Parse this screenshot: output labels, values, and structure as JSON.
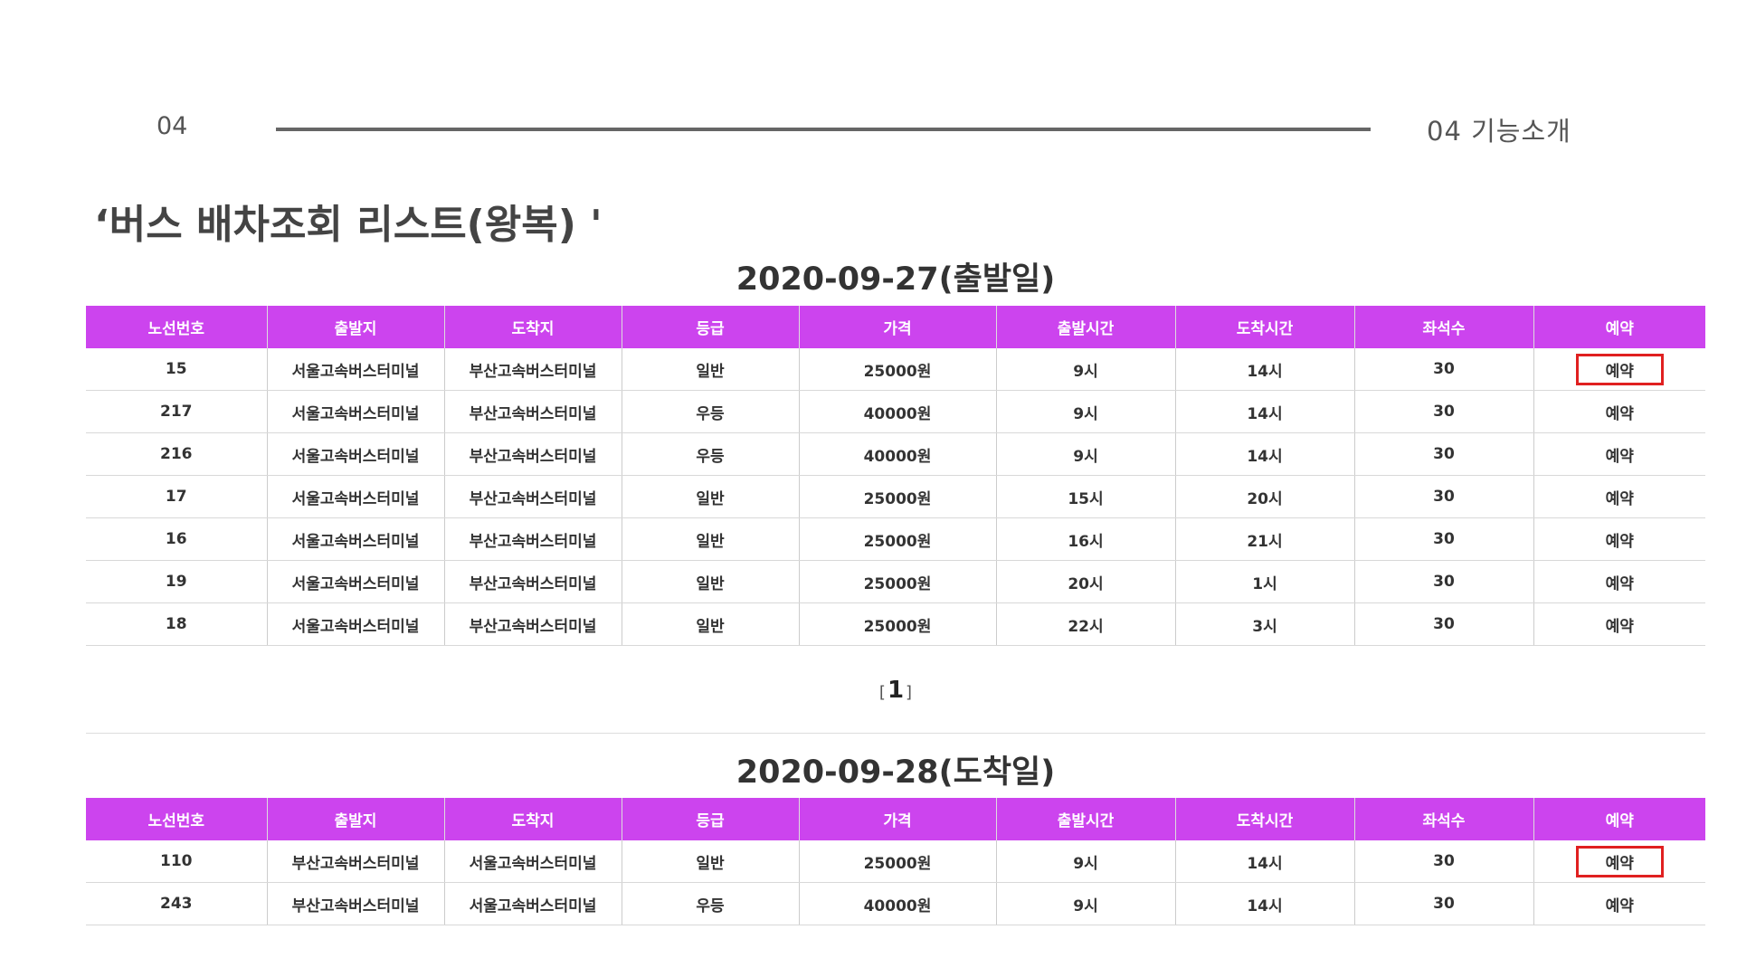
{
  "header": {
    "number": "04",
    "section": "04  기능소개"
  },
  "title": "‘버스 배차조회 리스트(왕복) '",
  "columns": [
    "노선번호",
    "출발지",
    "도착지",
    "등급",
    "가격",
    "출발시간",
    "도착시간",
    "좌석수",
    "예약"
  ],
  "departure": {
    "heading": "2020-09-27(출발일)",
    "rows": [
      {
        "route": "15",
        "from": "서울고속버스터미널",
        "to": "부산고속버스터미널",
        "grade": "일반",
        "price": "25000원",
        "dep": "9시",
        "arr": "14시",
        "seats": "30",
        "reserve": "예약",
        "highlight": true
      },
      {
        "route": "217",
        "from": "서울고속버스터미널",
        "to": "부산고속버스터미널",
        "grade": "우등",
        "price": "40000원",
        "dep": "9시",
        "arr": "14시",
        "seats": "30",
        "reserve": "예약",
        "highlight": false
      },
      {
        "route": "216",
        "from": "서울고속버스터미널",
        "to": "부산고속버스터미널",
        "grade": "우등",
        "price": "40000원",
        "dep": "9시",
        "arr": "14시",
        "seats": "30",
        "reserve": "예약",
        "highlight": false
      },
      {
        "route": "17",
        "from": "서울고속버스터미널",
        "to": "부산고속버스터미널",
        "grade": "일반",
        "price": "25000원",
        "dep": "15시",
        "arr": "20시",
        "seats": "30",
        "reserve": "예약",
        "highlight": false
      },
      {
        "route": "16",
        "from": "서울고속버스터미널",
        "to": "부산고속버스터미널",
        "grade": "일반",
        "price": "25000원",
        "dep": "16시",
        "arr": "21시",
        "seats": "30",
        "reserve": "예약",
        "highlight": false
      },
      {
        "route": "19",
        "from": "서울고속버스터미널",
        "to": "부산고속버스터미널",
        "grade": "일반",
        "price": "25000원",
        "dep": "20시",
        "arr": "1시",
        "seats": "30",
        "reserve": "예약",
        "highlight": false
      },
      {
        "route": "18",
        "from": "서울고속버스터미널",
        "to": "부산고속버스터미널",
        "grade": "일반",
        "price": "25000원",
        "dep": "22시",
        "arr": "3시",
        "seats": "30",
        "reserve": "예약",
        "highlight": false
      }
    ]
  },
  "pagination": {
    "left": "[",
    "current": "1",
    "right": "]"
  },
  "arrival": {
    "heading": "2020-09-28(도착일)",
    "rows": [
      {
        "route": "110",
        "from": "부산고속버스터미널",
        "to": "서울고속버스터미널",
        "grade": "일반",
        "price": "25000원",
        "dep": "9시",
        "arr": "14시",
        "seats": "30",
        "reserve": "예약",
        "highlight": true
      },
      {
        "route": "243",
        "from": "부산고속버스터미널",
        "to": "서울고속버스터미널",
        "grade": "우등",
        "price": "40000원",
        "dep": "9시",
        "arr": "14시",
        "seats": "30",
        "reserve": "예약",
        "highlight": false
      }
    ]
  },
  "colors": {
    "header_bg": "#cc44ee",
    "highlight_border": "#e02020"
  }
}
